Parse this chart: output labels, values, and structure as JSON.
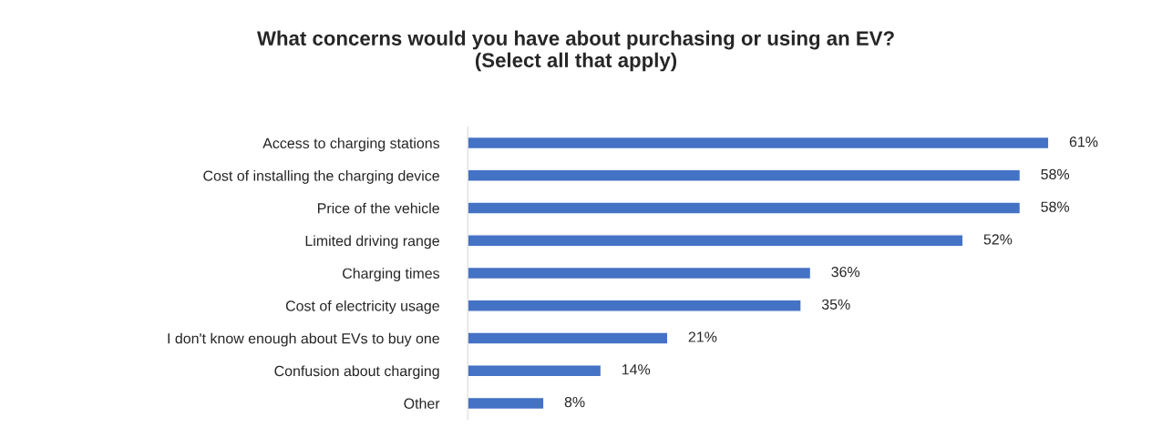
{
  "chart_data": {
    "type": "bar",
    "orientation": "horizontal",
    "title": "What concerns would you have about purchasing or using an EV?\n(Select all that apply)",
    "categories": [
      "Access to charging stations",
      "Cost of installing the charging device",
      "Price of the vehicle",
      "Limited driving range",
      "Charging times",
      "Cost of electricity usage",
      "I don't know enough about EVs to buy one",
      "Confusion about charging",
      "Other"
    ],
    "values": [
      61,
      58,
      58,
      52,
      36,
      35,
      21,
      14,
      8
    ],
    "value_labels": [
      "61%",
      "58%",
      "58%",
      "52%",
      "36%",
      "35%",
      "21%",
      "14%",
      "8%"
    ],
    "color": "#4472c4",
    "grid": false,
    "legend": false
  }
}
